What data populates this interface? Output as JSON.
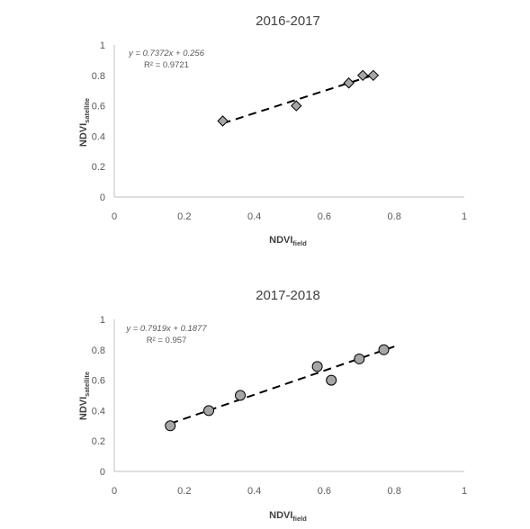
{
  "chart_data": [
    {
      "type": "scatter",
      "title": "2016-2017",
      "xlabel": "NDVI",
      "xlabel_sub": "field",
      "ylabel": "NDVI",
      "ylabel_sub": "satellite",
      "xlim": [
        0,
        1
      ],
      "ylim": [
        0,
        1
      ],
      "x_ticks": [
        "0",
        "0.2",
        "0.4",
        "0.6",
        "0.8",
        "1"
      ],
      "y_ticks": [
        "0",
        "0.2",
        "0.4",
        "0.6",
        "0.8",
        "1"
      ],
      "marker": "diamond",
      "points": [
        {
          "x": 0.31,
          "y": 0.5
        },
        {
          "x": 0.52,
          "y": 0.6
        },
        {
          "x": 0.67,
          "y": 0.75
        },
        {
          "x": 0.71,
          "y": 0.8
        },
        {
          "x": 0.74,
          "y": 0.8
        }
      ],
      "trendline": {
        "slope": 0.7372,
        "intercept": 0.256,
        "x_range": [
          0.31,
          0.74
        ]
      },
      "equation": "y = 0.7372x + 0.256",
      "r2": "R² = 0.9721",
      "grid": false,
      "legend": "none"
    },
    {
      "type": "scatter",
      "title": "2017-2018",
      "xlabel": "NDVI",
      "xlabel_sub": "field",
      "ylabel": "NDVI",
      "ylabel_sub": "satellite",
      "xlim": [
        0,
        1
      ],
      "ylim": [
        0,
        1
      ],
      "x_ticks": [
        "0",
        "0.2",
        "0.4",
        "0.6",
        "0.8",
        "1"
      ],
      "y_ticks": [
        "0",
        "0.2",
        "0.4",
        "0.6",
        "0.8",
        "1"
      ],
      "marker": "circle",
      "points": [
        {
          "x": 0.16,
          "y": 0.3
        },
        {
          "x": 0.27,
          "y": 0.4
        },
        {
          "x": 0.36,
          "y": 0.5
        },
        {
          "x": 0.58,
          "y": 0.69
        },
        {
          "x": 0.62,
          "y": 0.6
        },
        {
          "x": 0.7,
          "y": 0.74
        },
        {
          "x": 0.77,
          "y": 0.8
        }
      ],
      "trendline": {
        "slope": 0.7919,
        "intercept": 0.1877,
        "x_range": [
          0.16,
          0.8
        ]
      },
      "equation": "y = 0.7919x + 0.1877",
      "r2": "R² = 0.957",
      "grid": false,
      "legend": "none"
    }
  ]
}
